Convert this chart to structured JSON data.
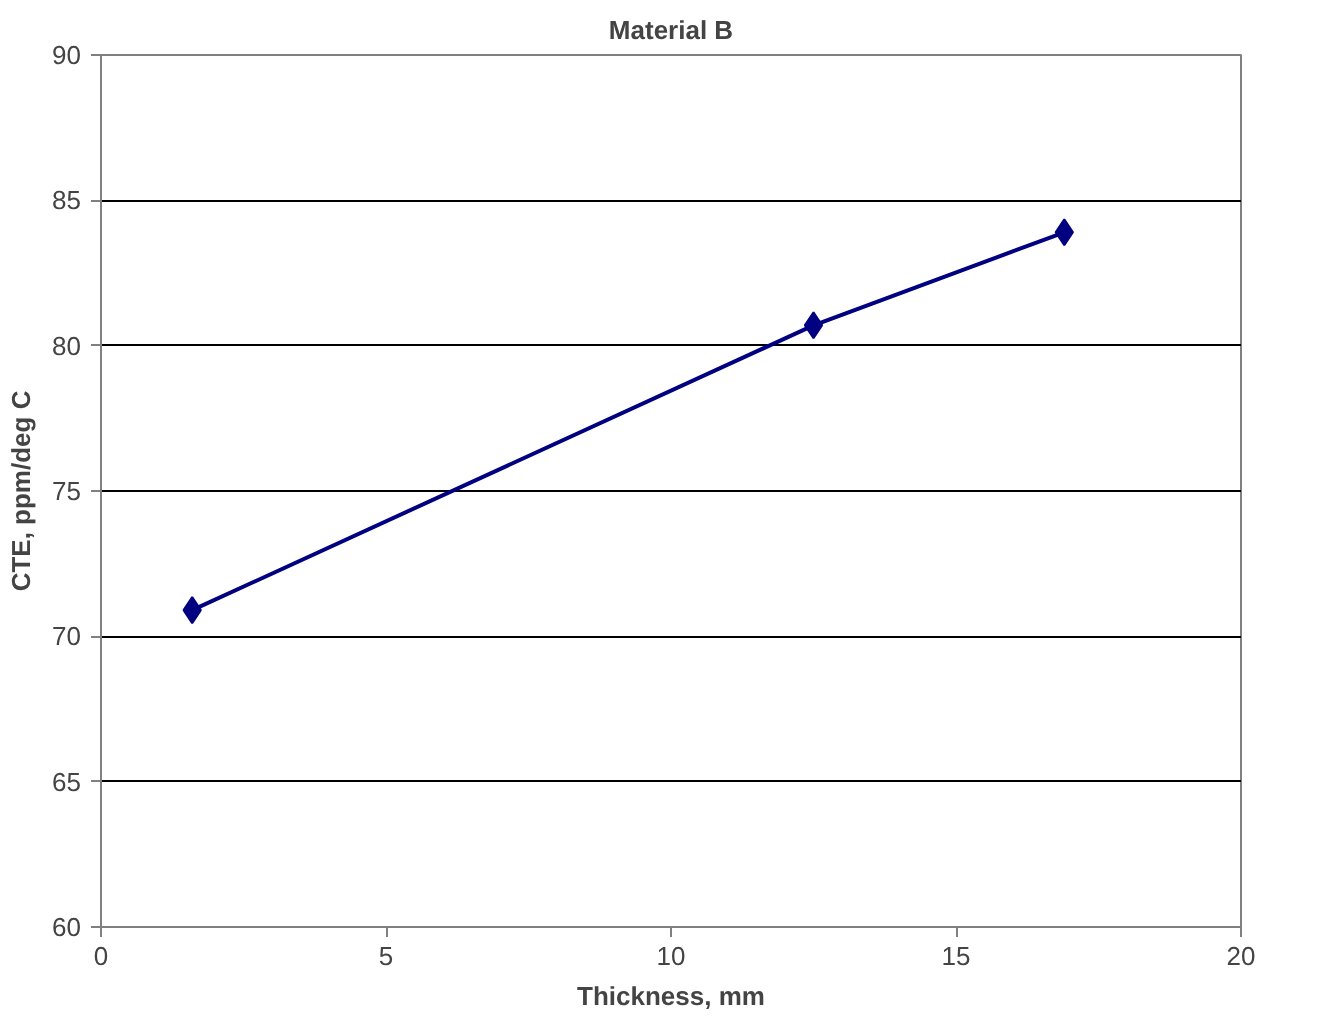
{
  "chart_data": {
    "type": "line",
    "title": "Material B",
    "xlabel": "Thickness, mm",
    "ylabel": "CTE, ppm/deg C",
    "x": [
      1.6,
      12.5,
      16.9
    ],
    "series": [
      {
        "color": "#000080",
        "values": [
          70.9,
          80.7,
          83.9
        ]
      }
    ],
    "xlim": [
      0,
      20
    ],
    "xticks": [
      0,
      5,
      10,
      15,
      20
    ],
    "ylim": [
      60,
      90
    ],
    "yticks": [
      60,
      65,
      70,
      75,
      80,
      85,
      90
    ],
    "grid": "y",
    "marker": "diamond",
    "line_style": "solid"
  }
}
